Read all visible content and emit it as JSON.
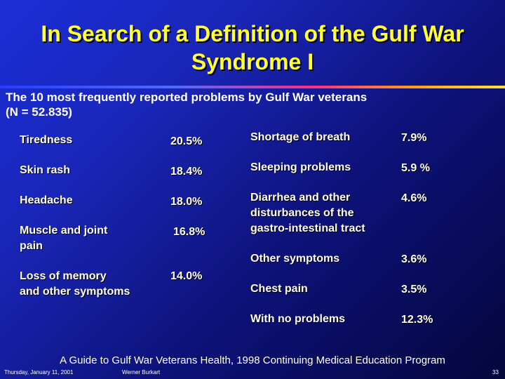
{
  "title_line1": "In Search of a Definition of the Gulf War",
  "title_line2": "Syndrome I",
  "subtitle_line1": "The 10 most frequently reported problems by Gulf War veterans",
  "subtitle_line2": "(N = 52.835)",
  "left_items": [
    {
      "label": "Tiredness",
      "value": "20.5%"
    },
    {
      "label": "Skin rash",
      "value": "18.4%"
    },
    {
      "label": "Headache",
      "value": "18.0%"
    },
    {
      "label_line1": "Muscle and joint",
      "label_line2": "pain",
      "value": "16.8%"
    },
    {
      "label_line1": "Loss of memory",
      "label_line2": "and other symptoms",
      "value": "14.0%"
    }
  ],
  "right_items": [
    {
      "label": "Shortage of breath",
      "value": "7.9%"
    },
    {
      "label": "Sleeping problems",
      "value": "5.9 %"
    },
    {
      "label_line1": "Diarrhea and other",
      "label_line2": "disturbances of the",
      "label_line3": "gastro-intestinal tract",
      "value": "4.6%"
    },
    {
      "label": "Other symptoms",
      "value": "3.6%"
    },
    {
      "label": "Chest pain",
      "value": "3.5%"
    },
    {
      "label": "With no problems",
      "value": "12.3%"
    }
  ],
  "source": "A Guide to Gulf War Veterans Health, 1998 Continuing Medical Education Program",
  "footer": {
    "date": "Thursday, January 11, 2001",
    "author": "Werner Burkart",
    "page": "33"
  },
  "colors": {
    "title": "#ffff33",
    "text": "#ffffff",
    "background_start": "#1b2fd8",
    "background_end": "#05063c"
  }
}
